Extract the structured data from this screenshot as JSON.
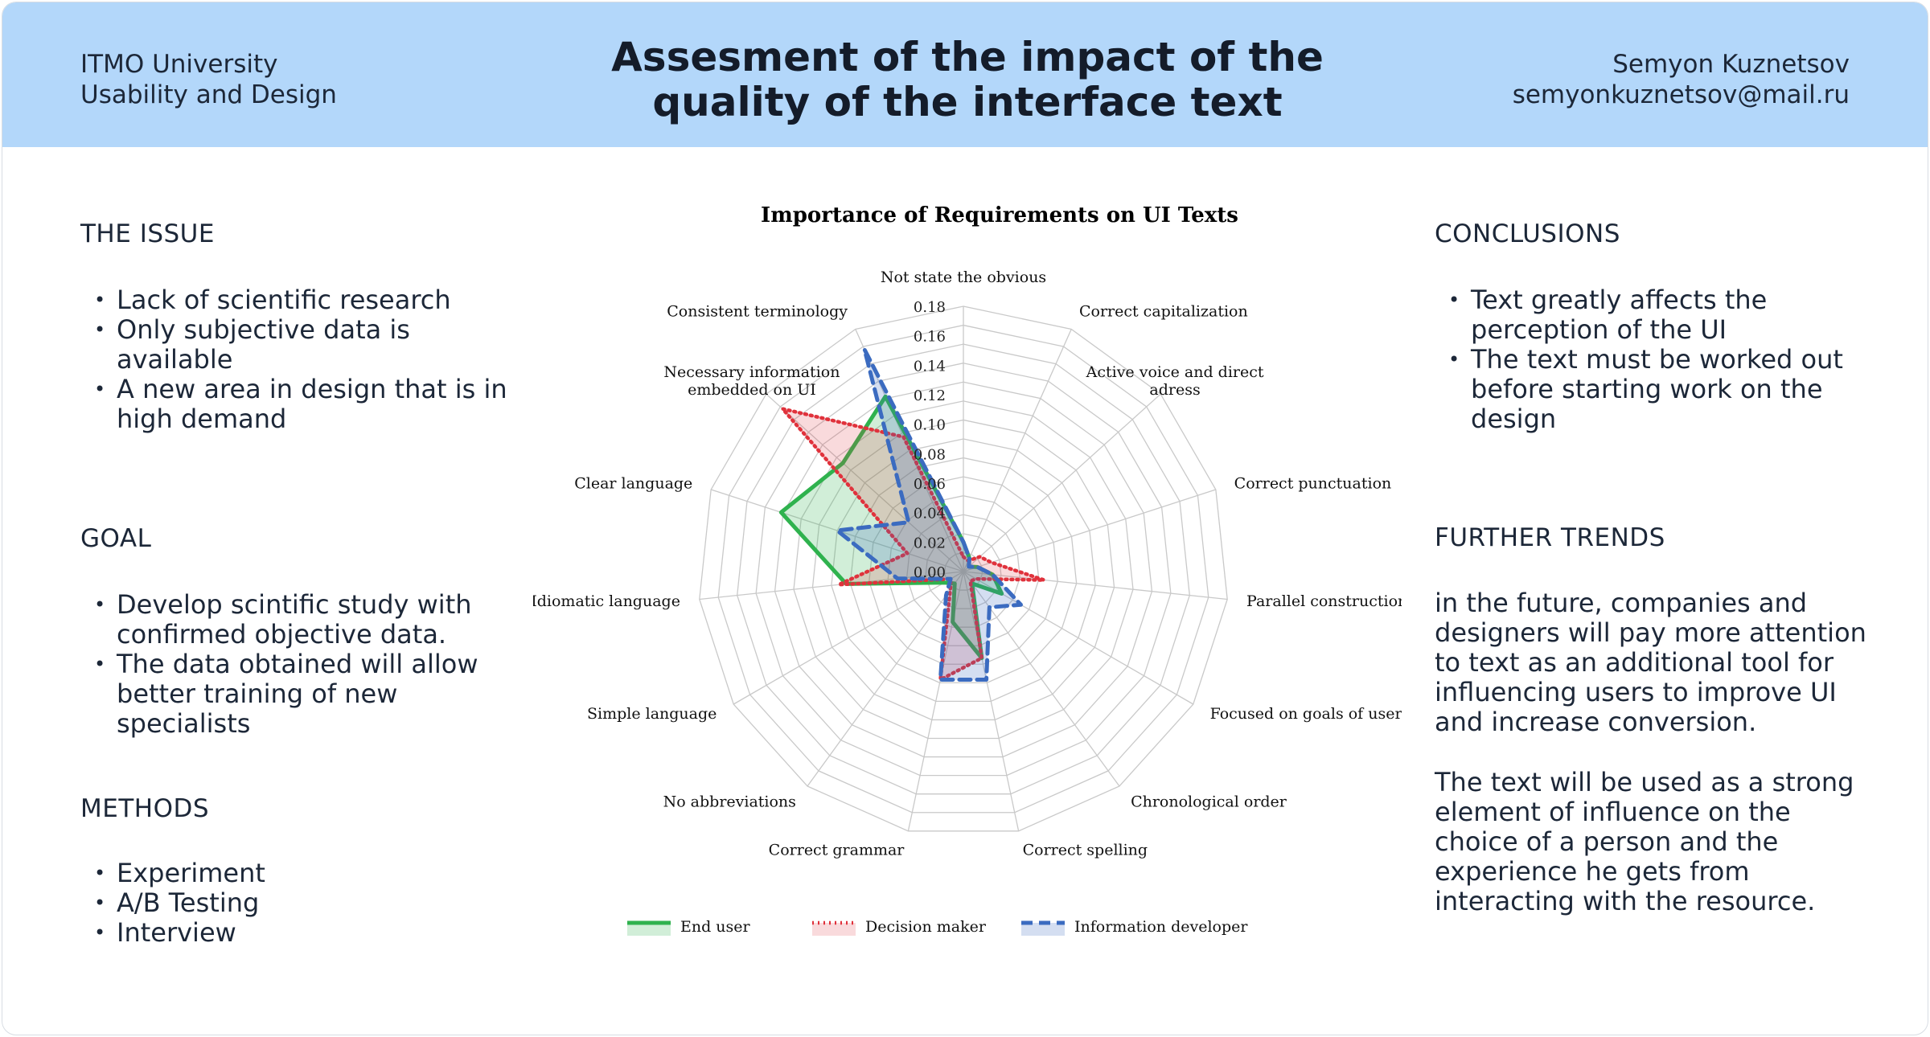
{
  "header": {
    "org_line1": "ITMO University",
    "org_line2": "Usability and Design",
    "title_line1": "Assesment of the impact of the",
    "title_line2": "quality of the interface text",
    "author_name": "Semyon Kuznetsov",
    "author_email": "semyonkuznetsov@mail.ru"
  },
  "left": {
    "issue": {
      "heading": "THE ISSUE",
      "items": [
        "Lack of scientific research",
        "Only subjective data is available",
        "A new area in design that is in high demand"
      ]
    },
    "goal": {
      "heading": "GOAL",
      "items": [
        "Develop scintific study with confirmed objective data.",
        "The data obtained will allow better training of new specialists"
      ]
    },
    "methods": {
      "heading": "METHODS",
      "items": [
        "Experiment",
        "A/B Testing",
        "Interview"
      ]
    }
  },
  "right": {
    "conclusions": {
      "heading": "CONCLUSIONS",
      "items": [
        "Text greatly affects the perception of the UI",
        "The text must be worked out before starting work on the design"
      ]
    },
    "trends": {
      "heading": "FURTHER TRENDS",
      "paragraphs": [
        "in the future, companies and designers will pay more attention to text as an additional tool for influencing users to improve UI and increase conversion.",
        "The text will be used as a strong element of influence on the choice of a person and the experience he gets from interacting with the resource."
      ]
    }
  },
  "colors": {
    "header_bg": "#b3d7fa",
    "end_user": "#2fb24e",
    "decision_maker": "#e0323c",
    "information_developer": "#3b6bc0"
  },
  "chart_data": {
    "type": "radar",
    "title": "Importance of Requirements on UI Texts",
    "categories": [
      "Not state the obvious",
      "Correct capitalization",
      "Active voice and direct adress",
      "Correct punctuation",
      "Parallel construction",
      "Focused on goals of user",
      "Chronological order",
      "Correct spelling",
      "Correct grammar",
      "No abbreviations",
      "Simple language",
      "Idiomatic language",
      "Clear language",
      "Necessary information embedded on UI",
      "Consistent terminology"
    ],
    "rlim": [
      0,
      0.18
    ],
    "ticks": [
      "0.00",
      "0.02",
      "0.04",
      "0.06",
      "0.08",
      "0.10",
      "0.12",
      "0.14",
      "0.16",
      "0.18"
    ],
    "grid": true,
    "legend_position": "bottom",
    "series": [
      {
        "name": "End user",
        "style": "solid",
        "color": "#2fb24e",
        "values": [
          0.02,
          0.01,
          0.005,
          0.01,
          0.02,
          0.03,
          0.01,
          0.06,
          0.035,
          0.01,
          0.015,
          0.08,
          0.13,
          0.11,
          0.13
        ]
      },
      {
        "name": "Decision maker",
        "style": "dotted",
        "color": "#e0323c",
        "values": [
          0.01,
          0.008,
          0.015,
          0.02,
          0.055,
          0.01,
          0.008,
          0.06,
          0.075,
          0.015,
          0.01,
          0.085,
          0.04,
          0.165,
          0.1
        ]
      },
      {
        "name": "Information developer",
        "style": "dashed",
        "color": "#3b6bc0",
        "values": [
          0.02,
          0.01,
          0.005,
          0.01,
          0.02,
          0.045,
          0.03,
          0.075,
          0.075,
          0.02,
          0.01,
          0.045,
          0.09,
          0.05,
          0.165
        ]
      }
    ]
  }
}
